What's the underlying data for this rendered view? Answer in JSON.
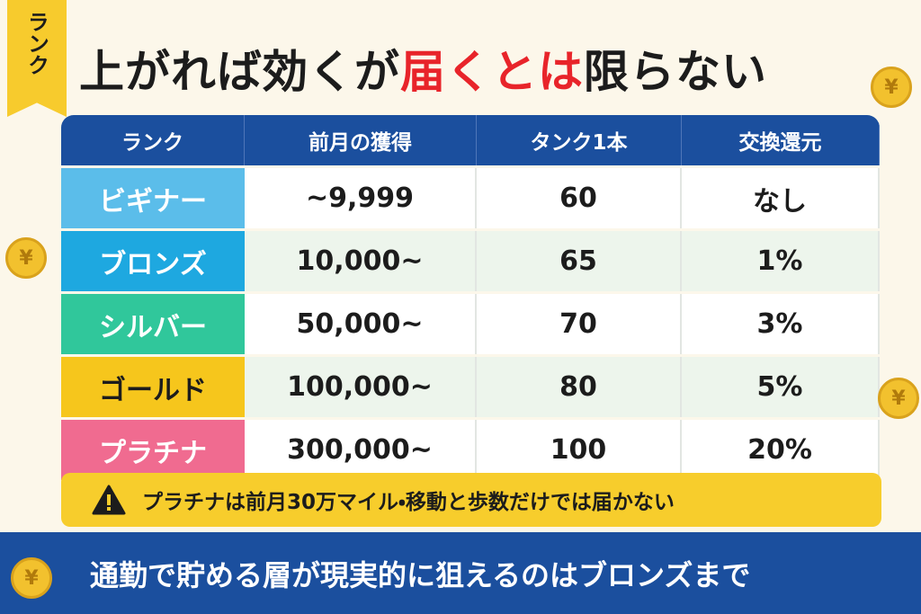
{
  "badge": "ランク",
  "title": {
    "before": "上がれば効くが",
    "highlight": "届くとは",
    "after": "限らない"
  },
  "table": {
    "header": [
      "ランク",
      "前月の獲得",
      "タンク1本",
      "交換還元"
    ],
    "rows": [
      [
        "ビギナー",
        "~9,999",
        "60",
        "なし"
      ],
      [
        "ブロンズ",
        "10,000~",
        "65",
        "1%"
      ],
      [
        "シルバー",
        "50,000~",
        "70",
        "3%"
      ],
      [
        "ゴールド",
        "100,000~",
        "80",
        "5%"
      ],
      [
        "プラチナ",
        "300,000~",
        "100",
        "20%"
      ]
    ]
  },
  "note": "プラチナは前月30万マイル・移動と歩数だけでは届かない",
  "footer": "通勤で貯める層が現実的に狙えるのはブロンズまで",
  "coin_symbol": "¥"
}
